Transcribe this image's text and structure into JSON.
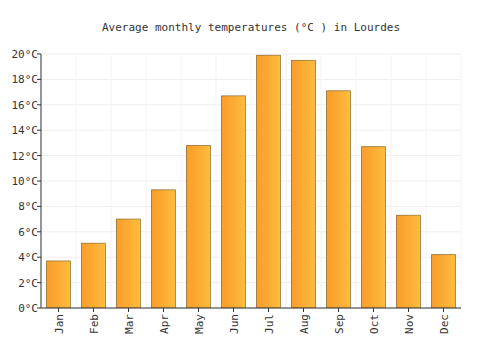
{
  "chart_data": {
    "type": "bar",
    "title": "Average monthly temperatures (°C ) in Lourdes",
    "categories": [
      "Jan",
      "Feb",
      "Mar",
      "Apr",
      "May",
      "Jun",
      "Jul",
      "Aug",
      "Sep",
      "Oct",
      "Nov",
      "Dec"
    ],
    "values": [
      3.7,
      5.1,
      7.0,
      9.3,
      12.8,
      16.7,
      19.9,
      19.5,
      17.1,
      12.7,
      7.3,
      4.2
    ],
    "color": "#ffa834",
    "ylim": [
      0,
      20
    ],
    "yticks": [
      {
        "value": 0,
        "label": "0°C"
      },
      {
        "value": 2,
        "label": "2°C"
      },
      {
        "value": 4,
        "label": "4°C"
      },
      {
        "value": 6,
        "label": "6°C"
      },
      {
        "value": 8,
        "label": "8°C"
      },
      {
        "value": 10,
        "label": "10°C"
      },
      {
        "value": 12,
        "label": "12°C"
      },
      {
        "value": 14,
        "label": "14°C"
      },
      {
        "value": 16,
        "label": "16°C"
      },
      {
        "value": 18,
        "label": "18°C"
      },
      {
        "value": 20,
        "label": "20°C"
      }
    ],
    "grid": true
  }
}
